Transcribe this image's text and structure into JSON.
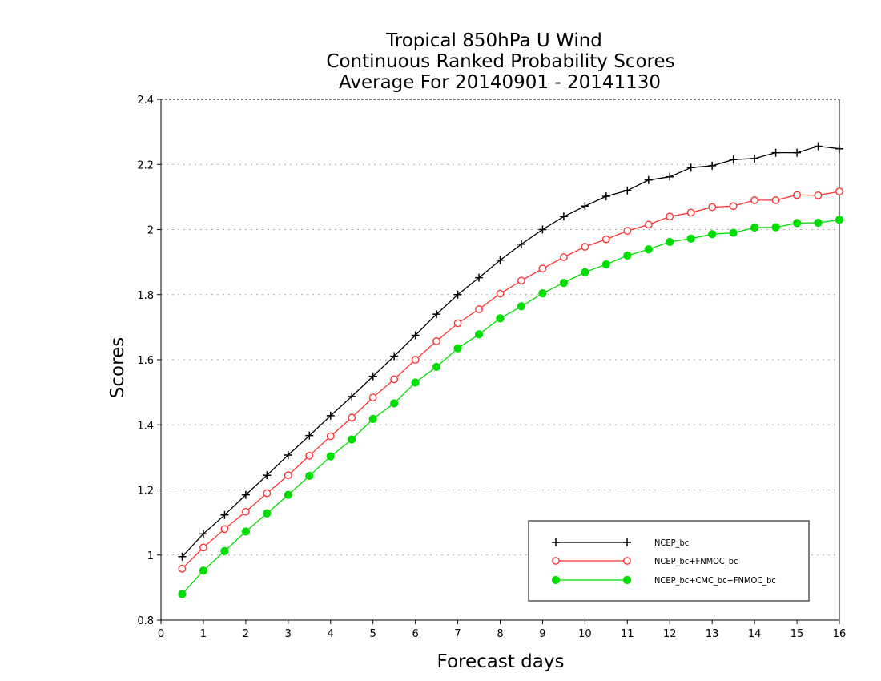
{
  "chart_data": {
    "type": "line",
    "title": [
      "Tropical 850hPa U Wind",
      "Continuous Ranked Probability Scores",
      "Average For 20140901 - 20141130"
    ],
    "xlabel": "Forecast days",
    "ylabel": "Scores",
    "xlim": [
      0,
      16
    ],
    "ylim": [
      0.8,
      2.4
    ],
    "xticks": [
      "0",
      "1",
      "2",
      "3",
      "4",
      "5",
      "6",
      "7",
      "8",
      "9",
      "10",
      "11",
      "12",
      "13",
      "14",
      "15",
      "16"
    ],
    "yticks": [
      "0.8",
      "1",
      "1.2",
      "1.4",
      "1.6",
      "1.8",
      "2",
      "2.2",
      "2.4"
    ],
    "grid": "horizontal dotted",
    "legend_position": "bottom-right",
    "x": [
      0.5,
      1,
      1.5,
      2,
      2.5,
      3,
      3.5,
      4,
      4.5,
      5,
      5.5,
      6,
      6.5,
      7,
      7.5,
      8,
      8.5,
      9,
      9.5,
      10,
      10.5,
      11,
      11.5,
      12,
      12.5,
      13,
      13.5,
      14,
      14.5,
      15,
      15.5,
      16
    ],
    "series": [
      {
        "name": "NCEP_bc",
        "color": "#000000",
        "marker": "plus",
        "values": [
          0.995,
          1.065,
          1.123,
          1.185,
          1.245,
          1.307,
          1.367,
          1.428,
          1.487,
          1.549,
          1.611,
          1.675,
          1.74,
          1.8,
          1.852,
          1.906,
          1.955,
          2.0,
          2.04,
          2.072,
          2.102,
          2.12,
          2.152,
          2.162,
          2.19,
          2.196,
          2.215,
          2.218,
          2.236,
          2.236,
          2.256,
          2.248
        ]
      },
      {
        "name": "NCEP_bc+FNMOC_bc",
        "color": "#ff3333",
        "marker": "open-circle",
        "values": [
          0.958,
          1.023,
          1.08,
          1.133,
          1.19,
          1.245,
          1.305,
          1.365,
          1.422,
          1.484,
          1.54,
          1.6,
          1.657,
          1.712,
          1.755,
          1.803,
          1.843,
          1.88,
          1.915,
          1.947,
          1.97,
          1.996,
          2.015,
          2.04,
          2.052,
          2.069,
          2.072,
          2.09,
          2.09,
          2.106,
          2.105,
          2.117
        ]
      },
      {
        "name": "NCEP_bc+CMC_bc+FNMOC_bc",
        "color": "#00dd00",
        "marker": "filled-circle",
        "values": [
          0.88,
          0.952,
          1.012,
          1.072,
          1.128,
          1.185,
          1.243,
          1.303,
          1.355,
          1.418,
          1.466,
          1.53,
          1.578,
          1.635,
          1.678,
          1.727,
          1.764,
          1.804,
          1.836,
          1.869,
          1.893,
          1.92,
          1.939,
          1.962,
          1.972,
          1.986,
          1.99,
          2.006,
          2.007,
          2.02,
          2.021,
          2.03
        ]
      }
    ]
  }
}
